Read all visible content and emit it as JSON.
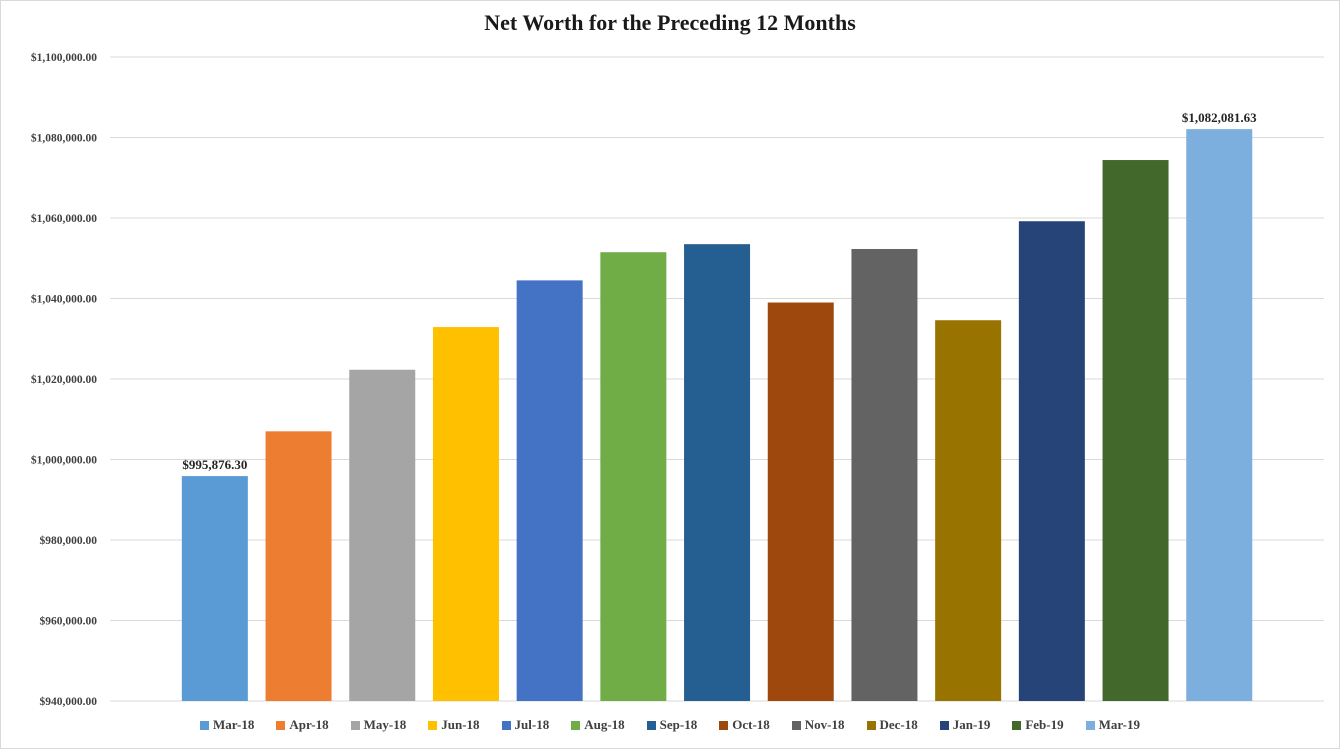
{
  "chart_data": {
    "type": "bar",
    "title": "Net Worth for the Preceding 12 Months",
    "xlabel": "",
    "ylabel": "",
    "ylim": [
      940000,
      1100000
    ],
    "yticks": [
      940000,
      960000,
      980000,
      1000000,
      1020000,
      1040000,
      1060000,
      1080000,
      1100000
    ],
    "ytick_labels": [
      "$940,000.00",
      "$960,000.00",
      "$980,000.00",
      "$1,000,000.00",
      "$1,020,000.00",
      "$1,040,000.00",
      "$1,060,000.00",
      "$1,080,000.00",
      "$1,100,000.00"
    ],
    "grid": true,
    "legend_position": "bottom",
    "categories": [
      "Mar-18",
      "Apr-18",
      "May-18",
      "Jun-18",
      "Jul-18",
      "Aug-18",
      "Sep-18",
      "Oct-18",
      "Nov-18",
      "Dec-18",
      "Jan-19",
      "Feb-19",
      "Mar-19"
    ],
    "values": [
      995876.3,
      1007000,
      1022300,
      1032900,
      1044500,
      1051500,
      1053500,
      1039000,
      1052300,
      1034600,
      1059200,
      1074400,
      1082081.63
    ],
    "colors": [
      "#5B9BD5",
      "#ED7D31",
      "#A5A5A5",
      "#FFC000",
      "#4472C4",
      "#70AD47",
      "#255E91",
      "#9E480E",
      "#636363",
      "#997300",
      "#264478",
      "#43682B",
      "#7CAFDD"
    ],
    "data_labels": [
      {
        "index": 0,
        "text": "$995,876.30"
      },
      {
        "index": 12,
        "text": "$1,082,081.63"
      }
    ]
  }
}
